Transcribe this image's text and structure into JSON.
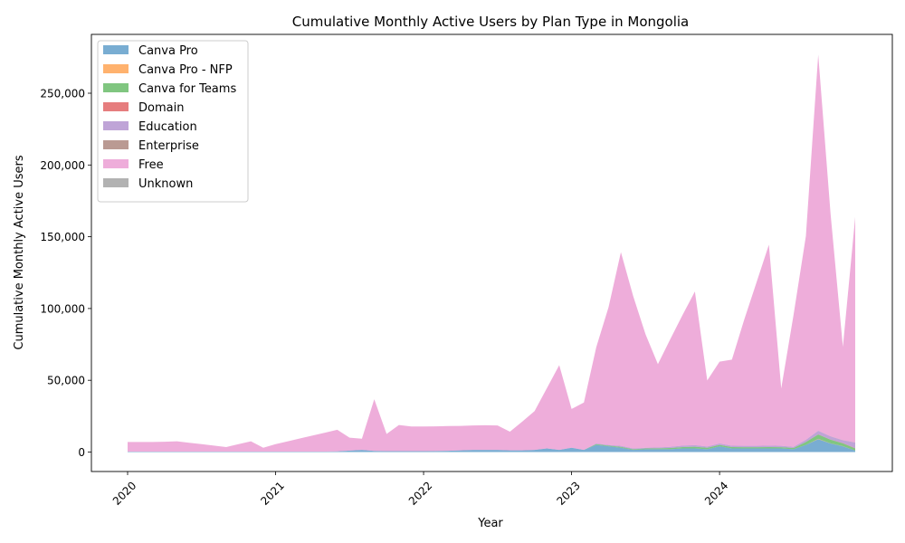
{
  "chart_data": {
    "type": "area",
    "stacked": true,
    "title": "Cumulative Monthly Active Users by Plan Type in Mongolia",
    "xlabel": "Year",
    "ylabel": "Cumulative Monthly Active Users",
    "xlim": [
      "2020-01",
      "2024-12"
    ],
    "ylim": [
      0,
      290000
    ],
    "xticks": [
      "2020",
      "2021",
      "2022",
      "2023",
      "2024"
    ],
    "yticks": [
      0,
      50000,
      100000,
      150000,
      200000,
      250000
    ],
    "ytick_labels": [
      "0",
      "50,000",
      "100,000",
      "150,000",
      "200,000",
      "250,000"
    ],
    "grid": false,
    "legend_position": "top-left",
    "x": [
      "2020-01",
      "2020-02",
      "2020-03",
      "2020-04",
      "2020-05",
      "2020-06",
      "2020-07",
      "2020-08",
      "2020-09",
      "2020-10",
      "2020-11",
      "2020-12",
      "2021-01",
      "2021-02",
      "2021-03",
      "2021-04",
      "2021-05",
      "2021-06",
      "2021-07",
      "2021-08",
      "2021-09",
      "2021-10",
      "2021-11",
      "2021-12",
      "2022-01",
      "2022-02",
      "2022-03",
      "2022-04",
      "2022-05",
      "2022-06",
      "2022-07",
      "2022-08",
      "2022-09",
      "2022-10",
      "2022-11",
      "2022-12",
      "2023-01",
      "2023-02",
      "2023-03",
      "2023-04",
      "2023-05",
      "2023-06",
      "2023-07",
      "2023-08",
      "2023-09",
      "2023-10",
      "2023-11",
      "2023-12",
      "2024-01",
      "2024-02",
      "2024-03",
      "2024-04",
      "2024-05",
      "2024-06",
      "2024-07",
      "2024-08",
      "2024-09",
      "2024-10",
      "2024-11",
      "2024-12"
    ],
    "series": [
      {
        "name": "Canva Pro",
        "color": "#1f77b4",
        "values": [
          300,
          300,
          300,
          300,
          300,
          300,
          300,
          300,
          300,
          300,
          300,
          300,
          300,
          300,
          300,
          300,
          300,
          500,
          1000,
          1500,
          800,
          600,
          600,
          600,
          600,
          700,
          900,
          1200,
          1500,
          1500,
          1500,
          1200,
          1200,
          1500,
          2500,
          1500,
          3000,
          1500,
          5000,
          4000,
          3000,
          1500,
          2000,
          2000,
          2000,
          2500,
          2500,
          2000,
          4000,
          2500,
          2500,
          2500,
          2500,
          2500,
          2000,
          5000,
          9000,
          6000,
          4000,
          1000
        ]
      },
      {
        "name": "Canva Pro - NFP",
        "color": "#ff7f0e",
        "values": [
          0,
          0,
          0,
          0,
          0,
          0,
          0,
          0,
          0,
          0,
          0,
          0,
          0,
          0,
          0,
          0,
          0,
          0,
          0,
          0,
          0,
          0,
          0,
          0,
          0,
          0,
          0,
          0,
          0,
          0,
          0,
          0,
          0,
          0,
          0,
          0,
          0,
          0,
          0,
          0,
          0,
          0,
          0,
          0,
          0,
          0,
          0,
          0,
          0,
          0,
          0,
          0,
          0,
          0,
          0,
          0,
          200,
          100,
          100,
          50
        ]
      },
      {
        "name": "Canva for Teams",
        "color": "#2ca02c",
        "values": [
          0,
          0,
          0,
          0,
          0,
          0,
          0,
          0,
          0,
          0,
          0,
          0,
          0,
          0,
          0,
          0,
          0,
          0,
          0,
          0,
          0,
          0,
          0,
          0,
          0,
          0,
          0,
          0,
          0,
          0,
          0,
          0,
          0,
          0,
          0,
          0,
          0,
          0,
          500,
          500,
          600,
          500,
          500,
          600,
          800,
          1000,
          1200,
          1000,
          1000,
          1000,
          900,
          900,
          1000,
          900,
          800,
          2000,
          3000,
          2500,
          2000,
          1500
        ]
      },
      {
        "name": "Domain",
        "color": "#d62728",
        "values": [
          0,
          0,
          0,
          0,
          0,
          0,
          0,
          0,
          0,
          0,
          0,
          0,
          0,
          0,
          0,
          0,
          0,
          0,
          0,
          0,
          0,
          0,
          0,
          0,
          0,
          0,
          0,
          0,
          0,
          0,
          0,
          0,
          0,
          0,
          0,
          0,
          0,
          0,
          0,
          0,
          0,
          0,
          0,
          0,
          0,
          0,
          0,
          0,
          0,
          0,
          0,
          0,
          0,
          0,
          0,
          0,
          100,
          100,
          100,
          100
        ]
      },
      {
        "name": "Education",
        "color": "#9467bd",
        "values": [
          0,
          0,
          0,
          0,
          0,
          0,
          0,
          0,
          0,
          0,
          0,
          0,
          0,
          0,
          0,
          0,
          0,
          0,
          0,
          0,
          0,
          0,
          0,
          0,
          0,
          0,
          0,
          0,
          0,
          0,
          0,
          0,
          0,
          0,
          0,
          0,
          0,
          0,
          500,
          500,
          700,
          500,
          500,
          600,
          800,
          1000,
          1100,
          900,
          1000,
          900,
          900,
          900,
          1000,
          900,
          800,
          1500,
          2500,
          2200,
          2000,
          4000
        ]
      },
      {
        "name": "Enterprise",
        "color": "#8c564b",
        "values": [
          0,
          0,
          0,
          0,
          0,
          0,
          0,
          0,
          0,
          0,
          0,
          0,
          0,
          0,
          0,
          0,
          0,
          0,
          0,
          0,
          0,
          0,
          0,
          0,
          0,
          0,
          0,
          0,
          0,
          0,
          0,
          0,
          0,
          0,
          0,
          0,
          0,
          0,
          0,
          0,
          0,
          0,
          0,
          0,
          0,
          0,
          0,
          0,
          0,
          0,
          0,
          0,
          0,
          0,
          0,
          0,
          50,
          50,
          50,
          50
        ]
      },
      {
        "name": "Free",
        "color": "#e377c2",
        "values": [
          6700,
          6700,
          6700,
          6900,
          7200,
          6200,
          5200,
          4200,
          3200,
          5200,
          7200,
          2700,
          5200,
          7200,
          9200,
          11200,
          13200,
          15000,
          9000,
          7800,
          36000,
          12000,
          18200,
          17200,
          17200,
          17200,
          17200,
          17000,
          17000,
          17200,
          17000,
          13000,
          20000,
          27000,
          42000,
          59000,
          27000,
          33000,
          67000,
          96000,
          135000,
          106000,
          79000,
          58000,
          75000,
          91000,
          107000,
          46000,
          57000,
          60000,
          88000,
          114000,
          140000,
          40000,
          92000,
          142000,
          262000,
          155000,
          65000,
          157000
        ]
      },
      {
        "name": "Unknown",
        "color": "#7f7f7f",
        "values": [
          0,
          0,
          0,
          0,
          0,
          0,
          0,
          0,
          0,
          0,
          0,
          0,
          0,
          0,
          0,
          0,
          0,
          0,
          0,
          0,
          0,
          0,
          0,
          0,
          0,
          0,
          0,
          0,
          0,
          0,
          0,
          0,
          0,
          0,
          0,
          0,
          0,
          0,
          0,
          0,
          0,
          0,
          0,
          0,
          0,
          0,
          0,
          0,
          0,
          0,
          0,
          0,
          0,
          0,
          0,
          0,
          50,
          50,
          50,
          50
        ]
      }
    ]
  }
}
